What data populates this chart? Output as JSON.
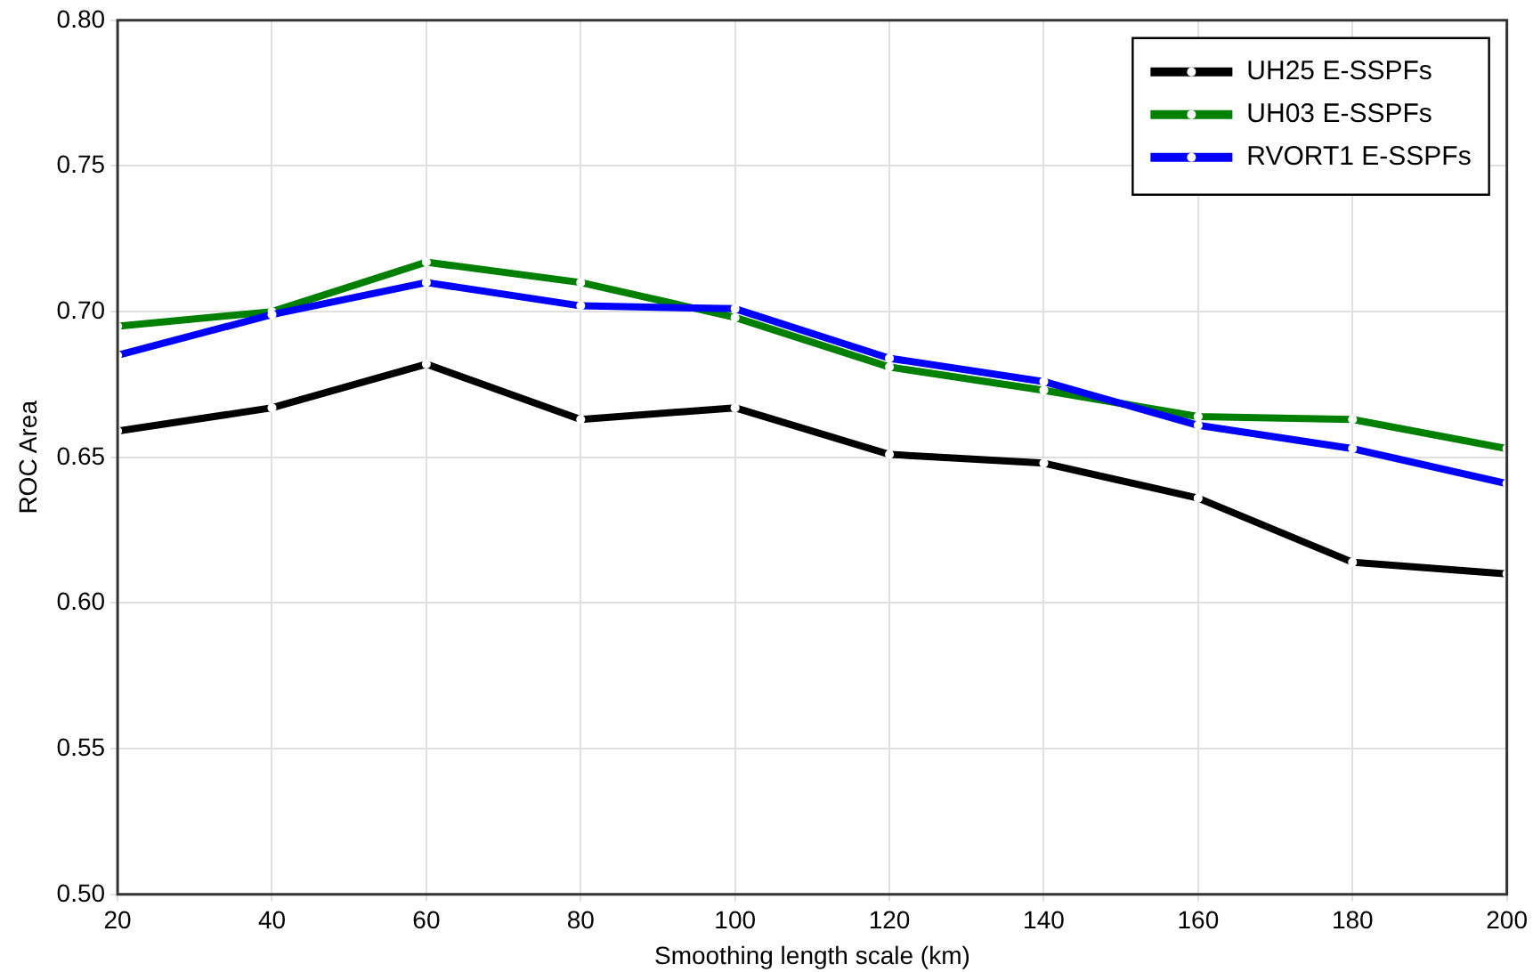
{
  "chart_data": {
    "type": "line",
    "xlabel": "Smoothing length scale (km)",
    "ylabel": "ROC Area",
    "x": [
      20,
      40,
      60,
      80,
      100,
      120,
      140,
      160,
      180,
      200
    ],
    "series": [
      {
        "name": "UH25 E-SSPFs",
        "color": "#000000",
        "values": [
          0.659,
          0.667,
          0.682,
          0.663,
          0.667,
          0.651,
          0.648,
          0.636,
          0.614,
          0.61
        ]
      },
      {
        "name": "UH03 E-SSPFs",
        "color": "#008000",
        "values": [
          0.695,
          0.7,
          0.717,
          0.71,
          0.698,
          0.681,
          0.673,
          0.664,
          0.663,
          0.653
        ]
      },
      {
        "name": "RVORT1 E-SSPFs",
        "color": "#0000ff",
        "values": [
          0.685,
          0.699,
          0.71,
          0.702,
          0.701,
          0.684,
          0.676,
          0.661,
          0.653,
          0.641
        ]
      }
    ],
    "xlim": [
      20,
      200
    ],
    "xticks": [
      20,
      40,
      60,
      80,
      100,
      120,
      140,
      160,
      180,
      200
    ],
    "ylim": [
      0.5,
      0.8
    ],
    "yticks": [
      {
        "value": 0.5,
        "label": "0.50"
      },
      {
        "value": 0.55,
        "label": "0.55"
      },
      {
        "value": 0.6,
        "label": "0.60"
      },
      {
        "value": 0.65,
        "label": "0.65"
      },
      {
        "value": 0.7,
        "label": "0.70"
      },
      {
        "value": 0.75,
        "label": "0.75"
      },
      {
        "value": 0.8,
        "label": "0.80"
      }
    ],
    "grid": true,
    "legend": "top right",
    "marker": "circle",
    "line_style": "solid"
  }
}
